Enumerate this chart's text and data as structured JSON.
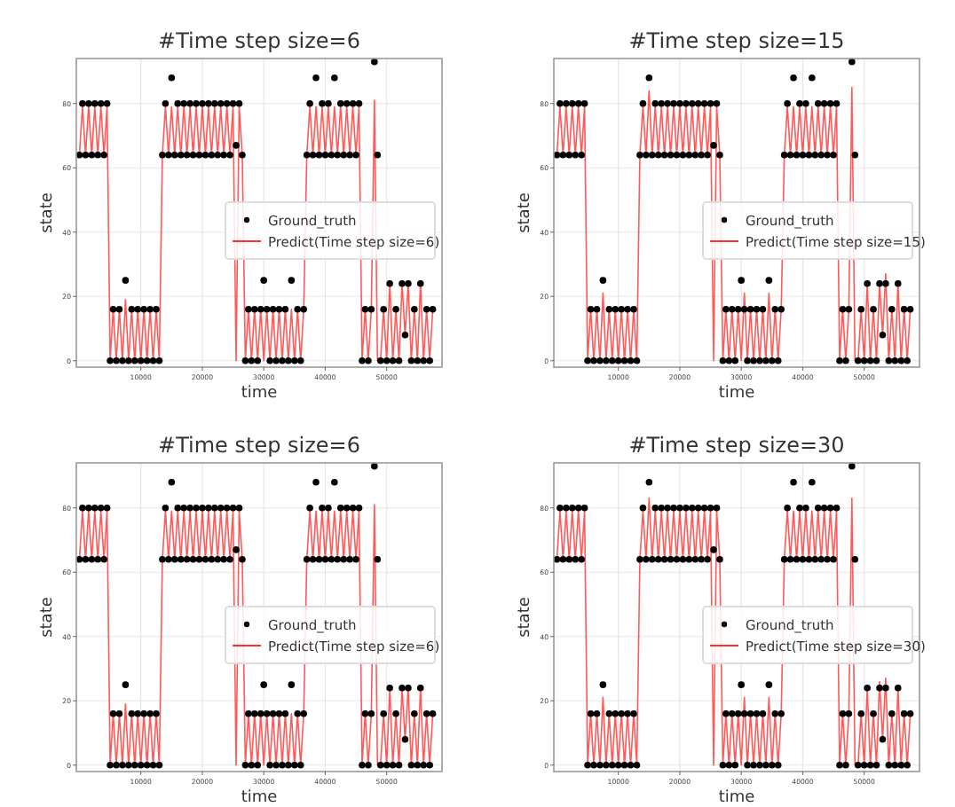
{
  "chart_data": [
    {
      "type": "line",
      "title": "#Time step size=6",
      "xlabel": "time",
      "ylabel": "state",
      "xlim": [
        -500,
        59000
      ],
      "ylim": [
        -2,
        94
      ],
      "xticks": [
        10000,
        20000,
        30000,
        40000,
        50000
      ],
      "yticks": [
        0,
        20,
        40,
        60,
        80
      ],
      "grid": true,
      "legend": "right",
      "x": [
        0,
        500,
        1000,
        1500,
        2000,
        2500,
        3000,
        3500,
        4000,
        4500,
        5000,
        5500,
        6000,
        6500,
        7000,
        7500,
        8000,
        8500,
        9000,
        9500,
        10000,
        10500,
        11000,
        11500,
        12000,
        12500,
        13000,
        13500,
        14000,
        14500,
        15000,
        15500,
        16000,
        16500,
        17000,
        17500,
        18000,
        18500,
        19000,
        19500,
        20000,
        20500,
        21000,
        21500,
        22000,
        22500,
        23000,
        23500,
        24000,
        24500,
        25000,
        25500,
        26000,
        26500,
        27000,
        27500,
        28000,
        28500,
        29000,
        29500,
        30000,
        30500,
        31000,
        31500,
        32000,
        32500,
        33000,
        33500,
        34000,
        34500,
        35000,
        35500,
        36000,
        36500,
        37000,
        37500,
        38000,
        38500,
        39000,
        39500,
        40000,
        40500,
        41000,
        41500,
        42000,
        42500,
        43000,
        43500,
        44000,
        44500,
        45000,
        45500,
        46000,
        46500,
        47000,
        47500,
        48000,
        48500,
        49000,
        49500,
        50000,
        50500,
        51000,
        51500,
        52000,
        52500,
        53000,
        53500,
        54000,
        54500,
        55000,
        55500,
        56000,
        56500,
        57000,
        57500
      ],
      "series": [
        {
          "name": "Predict(Time step size=6)",
          "color": "#ff3030",
          "values": [
            64,
            79,
            64,
            79,
            64,
            79,
            64,
            79,
            64,
            79,
            0,
            16,
            0,
            16,
            0,
            19,
            0,
            16,
            0,
            16,
            0,
            16,
            0,
            16,
            0,
            16,
            0,
            64,
            79,
            64,
            79,
            64,
            79,
            64,
            79,
            64,
            79,
            64,
            79,
            64,
            79,
            64,
            79,
            64,
            79,
            64,
            79,
            64,
            79,
            64,
            79,
            0,
            79,
            64,
            0,
            16,
            0,
            16,
            0,
            16,
            0,
            16,
            0,
            16,
            0,
            16,
            0,
            16,
            0,
            16,
            0,
            16,
            0,
            16,
            64,
            79,
            64,
            79,
            64,
            79,
            64,
            79,
            64,
            79,
            64,
            79,
            64,
            79,
            64,
            79,
            64,
            79,
            0,
            16,
            0,
            16,
            81,
            0,
            0,
            16,
            0,
            24,
            0,
            16,
            0,
            24,
            8,
            24,
            0,
            16,
            0,
            24,
            0,
            16,
            0,
            16
          ]
        },
        {
          "name": "Ground_truth",
          "type": "scatter",
          "marker": "circle",
          "color": "#000000",
          "values": [
            64,
            80,
            64,
            80,
            64,
            80,
            64,
            80,
            64,
            80,
            0,
            16,
            0,
            16,
            0,
            25,
            0,
            16,
            0,
            16,
            0,
            16,
            0,
            16,
            0,
            16,
            0,
            64,
            80,
            64,
            88,
            64,
            80,
            64,
            80,
            64,
            80,
            64,
            80,
            64,
            80,
            64,
            80,
            64,
            80,
            64,
            80,
            64,
            80,
            64,
            80,
            67,
            80,
            64,
            0,
            16,
            0,
            16,
            0,
            16,
            25,
            16,
            0,
            16,
            0,
            16,
            0,
            16,
            0,
            25,
            0,
            16,
            0,
            16,
            64,
            80,
            64,
            88,
            64,
            80,
            64,
            80,
            64,
            88,
            64,
            80,
            64,
            80,
            64,
            80,
            64,
            80,
            0,
            16,
            0,
            16,
            93,
            64,
            0,
            16,
            0,
            24,
            0,
            16,
            0,
            24,
            8,
            24,
            0,
            16,
            0,
            24,
            0,
            16,
            0,
            16
          ]
        }
      ]
    },
    {
      "type": "line",
      "title": "#Time step size=15",
      "xlabel": "time",
      "ylabel": "state",
      "xlim": [
        -500,
        59000
      ],
      "ylim": [
        -2,
        94
      ],
      "xticks": [
        10000,
        20000,
        30000,
        40000,
        50000
      ],
      "yticks": [
        0,
        20,
        40,
        60,
        80
      ],
      "grid": true,
      "legend": "right",
      "x": [
        0,
        500,
        1000,
        1500,
        2000,
        2500,
        3000,
        3500,
        4000,
        4500,
        5000,
        5500,
        6000,
        6500,
        7000,
        7500,
        8000,
        8500,
        9000,
        9500,
        10000,
        10500,
        11000,
        11500,
        12000,
        12500,
        13000,
        13500,
        14000,
        14500,
        15000,
        15500,
        16000,
        16500,
        17000,
        17500,
        18000,
        18500,
        19000,
        19500,
        20000,
        20500,
        21000,
        21500,
        22000,
        22500,
        23000,
        23500,
        24000,
        24500,
        25000,
        25500,
        26000,
        26500,
        27000,
        27500,
        28000,
        28500,
        29000,
        29500,
        30000,
        30500,
        31000,
        31500,
        32000,
        32500,
        33000,
        33500,
        34000,
        34500,
        35000,
        35500,
        36000,
        36500,
        37000,
        37500,
        38000,
        38500,
        39000,
        39500,
        40000,
        40500,
        41000,
        41500,
        42000,
        42500,
        43000,
        43500,
        44000,
        44500,
        45000,
        45500,
        46000,
        46500,
        47000,
        47500,
        48000,
        48500,
        49000,
        49500,
        50000,
        50500,
        51000,
        51500,
        52000,
        52500,
        53000,
        53500,
        54000,
        54500,
        55000,
        55500,
        56000,
        56500,
        57000,
        57500
      ],
      "series": [
        {
          "name": "Predict(Time step size=15)",
          "color": "#ff3030",
          "values": [
            64,
            79,
            64,
            79,
            64,
            79,
            64,
            79,
            64,
            79,
            0,
            16,
            0,
            16,
            0,
            21,
            0,
            16,
            0,
            16,
            0,
            16,
            0,
            16,
            0,
            16,
            0,
            64,
            79,
            64,
            84,
            64,
            79,
            64,
            79,
            64,
            79,
            64,
            79,
            64,
            79,
            64,
            79,
            64,
            79,
            64,
            79,
            64,
            79,
            64,
            79,
            0,
            79,
            64,
            0,
            16,
            0,
            16,
            0,
            16,
            0,
            21,
            0,
            16,
            0,
            16,
            0,
            16,
            0,
            21,
            0,
            16,
            0,
            16,
            64,
            79,
            64,
            79,
            64,
            79,
            64,
            79,
            64,
            79,
            64,
            79,
            64,
            79,
            64,
            79,
            64,
            79,
            0,
            16,
            0,
            16,
            85,
            0,
            0,
            16,
            0,
            24,
            0,
            16,
            0,
            24,
            8,
            27,
            0,
            16,
            0,
            24,
            0,
            16,
            0,
            16
          ]
        },
        {
          "name": "Ground_truth",
          "type": "scatter",
          "marker": "circle",
          "color": "#000000",
          "values": [
            64,
            80,
            64,
            80,
            64,
            80,
            64,
            80,
            64,
            80,
            0,
            16,
            0,
            16,
            0,
            25,
            0,
            16,
            0,
            16,
            0,
            16,
            0,
            16,
            0,
            16,
            0,
            64,
            80,
            64,
            88,
            64,
            80,
            64,
            80,
            64,
            80,
            64,
            80,
            64,
            80,
            64,
            80,
            64,
            80,
            64,
            80,
            64,
            80,
            64,
            80,
            67,
            80,
            64,
            0,
            16,
            0,
            16,
            0,
            16,
            25,
            16,
            0,
            16,
            0,
            16,
            0,
            16,
            0,
            25,
            0,
            16,
            0,
            16,
            64,
            80,
            64,
            88,
            64,
            80,
            64,
            80,
            64,
            88,
            64,
            80,
            64,
            80,
            64,
            80,
            64,
            80,
            0,
            16,
            0,
            16,
            93,
            64,
            0,
            16,
            0,
            24,
            0,
            16,
            0,
            24,
            8,
            24,
            0,
            16,
            0,
            24,
            0,
            16,
            0,
            16
          ]
        }
      ]
    },
    {
      "type": "line",
      "title": "#Time step size=6",
      "xlabel": "time",
      "ylabel": "state",
      "xlim": [
        -500,
        59000
      ],
      "ylim": [
        -2,
        94
      ],
      "xticks": [
        10000,
        20000,
        30000,
        40000,
        50000
      ],
      "yticks": [
        0,
        20,
        40,
        60,
        80
      ],
      "grid": true,
      "legend": "right",
      "x": [
        0,
        500,
        1000,
        1500,
        2000,
        2500,
        3000,
        3500,
        4000,
        4500,
        5000,
        5500,
        6000,
        6500,
        7000,
        7500,
        8000,
        8500,
        9000,
        9500,
        10000,
        10500,
        11000,
        11500,
        12000,
        12500,
        13000,
        13500,
        14000,
        14500,
        15000,
        15500,
        16000,
        16500,
        17000,
        17500,
        18000,
        18500,
        19000,
        19500,
        20000,
        20500,
        21000,
        21500,
        22000,
        22500,
        23000,
        23500,
        24000,
        24500,
        25000,
        25500,
        26000,
        26500,
        27000,
        27500,
        28000,
        28500,
        29000,
        29500,
        30000,
        30500,
        31000,
        31500,
        32000,
        32500,
        33000,
        33500,
        34000,
        34500,
        35000,
        35500,
        36000,
        36500,
        37000,
        37500,
        38000,
        38500,
        39000,
        39500,
        40000,
        40500,
        41000,
        41500,
        42000,
        42500,
        43000,
        43500,
        44000,
        44500,
        45000,
        45500,
        46000,
        46500,
        47000,
        47500,
        48000,
        48500,
        49000,
        49500,
        50000,
        50500,
        51000,
        51500,
        52000,
        52500,
        53000,
        53500,
        54000,
        54500,
        55000,
        55500,
        56000,
        56500,
        57000,
        57500
      ],
      "series": [
        {
          "name": "Predict(Time step size=6)",
          "color": "#ff3030",
          "values": [
            64,
            79,
            64,
            79,
            64,
            79,
            64,
            79,
            64,
            79,
            0,
            16,
            0,
            16,
            0,
            19,
            0,
            16,
            0,
            16,
            0,
            16,
            0,
            16,
            0,
            16,
            0,
            64,
            79,
            64,
            79,
            64,
            79,
            64,
            79,
            64,
            79,
            64,
            79,
            64,
            79,
            64,
            79,
            64,
            79,
            64,
            79,
            64,
            79,
            64,
            79,
            0,
            79,
            64,
            0,
            16,
            0,
            16,
            0,
            16,
            0,
            16,
            0,
            16,
            0,
            16,
            0,
            16,
            0,
            16,
            0,
            16,
            0,
            16,
            64,
            79,
            64,
            79,
            64,
            79,
            64,
            79,
            64,
            79,
            64,
            79,
            64,
            79,
            64,
            79,
            64,
            79,
            0,
            16,
            0,
            16,
            81,
            0,
            0,
            16,
            0,
            24,
            0,
            16,
            0,
            24,
            8,
            24,
            0,
            16,
            0,
            24,
            0,
            16,
            0,
            16
          ]
        },
        {
          "name": "Ground_truth",
          "type": "scatter",
          "marker": "circle",
          "color": "#000000",
          "values": [
            64,
            80,
            64,
            80,
            64,
            80,
            64,
            80,
            64,
            80,
            0,
            16,
            0,
            16,
            0,
            25,
            0,
            16,
            0,
            16,
            0,
            16,
            0,
            16,
            0,
            16,
            0,
            64,
            80,
            64,
            88,
            64,
            80,
            64,
            80,
            64,
            80,
            64,
            80,
            64,
            80,
            64,
            80,
            64,
            80,
            64,
            80,
            64,
            80,
            64,
            80,
            67,
            80,
            64,
            0,
            16,
            0,
            16,
            0,
            16,
            25,
            16,
            0,
            16,
            0,
            16,
            0,
            16,
            0,
            25,
            0,
            16,
            0,
            16,
            64,
            80,
            64,
            88,
            64,
            80,
            64,
            80,
            64,
            88,
            64,
            80,
            64,
            80,
            64,
            80,
            64,
            80,
            0,
            16,
            0,
            16,
            93,
            64,
            0,
            16,
            0,
            24,
            0,
            16,
            0,
            24,
            8,
            24,
            0,
            16,
            0,
            24,
            0,
            16,
            0,
            16
          ]
        }
      ]
    },
    {
      "type": "line",
      "title": "#Time step size=30",
      "xlabel": "time",
      "ylabel": "state",
      "xlim": [
        -500,
        59000
      ],
      "ylim": [
        -2,
        94
      ],
      "xticks": [
        10000,
        20000,
        30000,
        40000,
        50000
      ],
      "yticks": [
        0,
        20,
        40,
        60,
        80
      ],
      "grid": true,
      "legend": "right",
      "x": [
        0,
        500,
        1000,
        1500,
        2000,
        2500,
        3000,
        3500,
        4000,
        4500,
        5000,
        5500,
        6000,
        6500,
        7000,
        7500,
        8000,
        8500,
        9000,
        9500,
        10000,
        10500,
        11000,
        11500,
        12000,
        12500,
        13000,
        13500,
        14000,
        14500,
        15000,
        15500,
        16000,
        16500,
        17000,
        17500,
        18000,
        18500,
        19000,
        19500,
        20000,
        20500,
        21000,
        21500,
        22000,
        22500,
        23000,
        23500,
        24000,
        24500,
        25000,
        25500,
        26000,
        26500,
        27000,
        27500,
        28000,
        28500,
        29000,
        29500,
        30000,
        30500,
        31000,
        31500,
        32000,
        32500,
        33000,
        33500,
        34000,
        34500,
        35000,
        35500,
        36000,
        36500,
        37000,
        37500,
        38000,
        38500,
        39000,
        39500,
        40000,
        40500,
        41000,
        41500,
        42000,
        42500,
        43000,
        43500,
        44000,
        44500,
        45000,
        45500,
        46000,
        46500,
        47000,
        47500,
        48000,
        48500,
        49000,
        49500,
        50000,
        50500,
        51000,
        51500,
        52000,
        52500,
        53000,
        53500,
        54000,
        54500,
        55000,
        55500,
        56000,
        56500,
        57000,
        57500
      ],
      "series": [
        {
          "name": "Predict(Time step size=30)",
          "color": "#ff3030",
          "values": [
            64,
            79,
            64,
            79,
            64,
            79,
            64,
            79,
            64,
            79,
            0,
            16,
            0,
            16,
            0,
            21,
            0,
            16,
            0,
            16,
            0,
            16,
            0,
            16,
            0,
            16,
            0,
            64,
            79,
            64,
            83,
            64,
            79,
            64,
            79,
            64,
            79,
            64,
            79,
            64,
            79,
            64,
            79,
            64,
            79,
            64,
            79,
            64,
            79,
            64,
            79,
            0,
            79,
            64,
            0,
            16,
            0,
            16,
            0,
            16,
            0,
            21,
            0,
            16,
            0,
            16,
            0,
            16,
            0,
            21,
            0,
            16,
            0,
            16,
            64,
            79,
            64,
            79,
            64,
            79,
            64,
            79,
            64,
            79,
            64,
            79,
            64,
            79,
            64,
            79,
            64,
            79,
            0,
            16,
            0,
            16,
            83,
            0,
            0,
            16,
            0,
            24,
            0,
            16,
            0,
            26,
            8,
            27,
            0,
            16,
            0,
            24,
            0,
            16,
            0,
            16
          ]
        },
        {
          "name": "Ground_truth",
          "type": "scatter",
          "marker": "circle",
          "color": "#000000",
          "values": [
            64,
            80,
            64,
            80,
            64,
            80,
            64,
            80,
            64,
            80,
            0,
            16,
            0,
            16,
            0,
            25,
            0,
            16,
            0,
            16,
            0,
            16,
            0,
            16,
            0,
            16,
            0,
            64,
            80,
            64,
            88,
            64,
            80,
            64,
            80,
            64,
            80,
            64,
            80,
            64,
            80,
            64,
            80,
            64,
            80,
            64,
            80,
            64,
            80,
            64,
            80,
            67,
            80,
            64,
            0,
            16,
            0,
            16,
            0,
            16,
            25,
            16,
            0,
            16,
            0,
            16,
            0,
            16,
            0,
            25,
            0,
            16,
            0,
            16,
            64,
            80,
            64,
            88,
            64,
            80,
            64,
            80,
            64,
            88,
            64,
            80,
            64,
            80,
            64,
            80,
            64,
            80,
            0,
            16,
            0,
            16,
            93,
            64,
            0,
            16,
            0,
            24,
            0,
            16,
            0,
            24,
            8,
            24,
            0,
            16,
            0,
            24,
            0,
            16,
            0,
            16
          ]
        }
      ]
    }
  ]
}
